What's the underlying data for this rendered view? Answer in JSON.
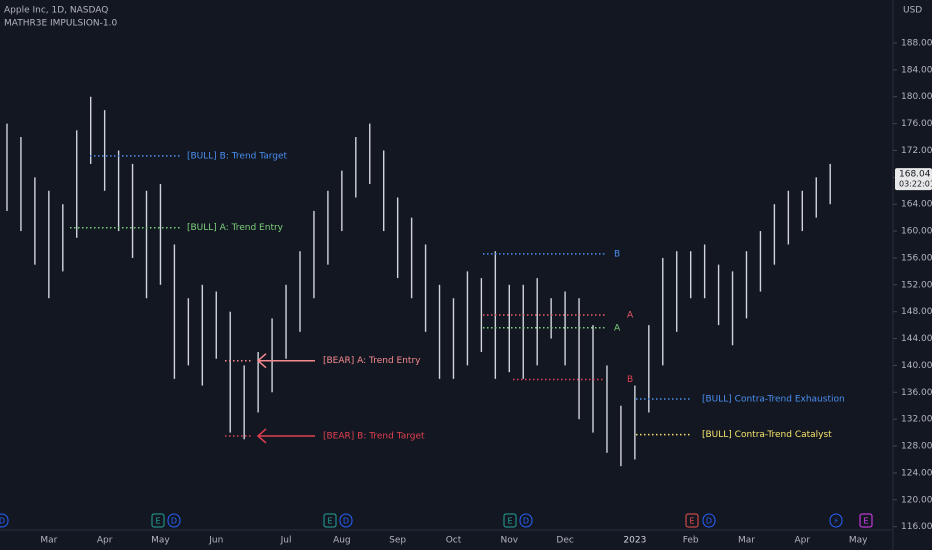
{
  "chart_data": {
    "type": "range",
    "title": "Apple Inc, 1D, NASDAQ",
    "subtitle": "MATHR3E IMPULSION-1.0",
    "currency": "USD",
    "last_price": 168.04,
    "countdown": "03:22:01",
    "bar_color": "#d1d4dc",
    "grid": false,
    "ylim": [
      115.5,
      194.4
    ],
    "yticks": [
      {
        "value": 116,
        "label": "116.00"
      },
      {
        "value": 120,
        "label": "120.00"
      },
      {
        "value": 124,
        "label": "124.00"
      },
      {
        "value": 128,
        "label": "128.00"
      },
      {
        "value": 132,
        "label": "132.00"
      },
      {
        "value": 136,
        "label": "136.00"
      },
      {
        "value": 140,
        "label": "140.00"
      },
      {
        "value": 144,
        "label": "144.00"
      },
      {
        "value": 148,
        "label": "148.00"
      },
      {
        "value": 152,
        "label": "152.00"
      },
      {
        "value": 156,
        "label": "156.00"
      },
      {
        "value": 160,
        "label": "160.00"
      },
      {
        "value": 164,
        "label": "164.00"
      },
      {
        "value": 168,
        "label": "168.00"
      },
      {
        "value": 172,
        "label": "172.00"
      },
      {
        "value": 176,
        "label": "176.00"
      },
      {
        "value": 180,
        "label": "180.00"
      },
      {
        "value": 184,
        "label": "184.00"
      },
      {
        "value": 188,
        "label": "188.00"
      }
    ],
    "categories": [
      null,
      null,
      null,
      "Mar",
      null,
      null,
      null,
      "Apr",
      null,
      null,
      null,
      "May",
      null,
      null,
      null,
      "Jun",
      null,
      null,
      null,
      null,
      "Jul",
      null,
      null,
      null,
      "Aug",
      null,
      null,
      null,
      "Sep",
      null,
      null,
      null,
      "Oct",
      null,
      null,
      null,
      "Nov",
      null,
      null,
      null,
      "Dec",
      null,
      null,
      null,
      null,
      "2023",
      null,
      null,
      null,
      "Feb",
      null,
      null,
      null,
      "Mar",
      null,
      null,
      null,
      "Apr",
      null,
      null,
      null,
      "May",
      null,
      null
    ],
    "low": [
      163,
      160,
      155,
      150,
      154,
      159,
      170,
      166,
      160,
      156,
      150,
      152,
      138,
      140,
      137,
      141,
      130,
      129,
      133,
      136,
      141,
      145,
      150,
      155,
      160,
      165,
      167,
      160,
      153,
      150,
      145,
      138,
      138,
      140,
      142,
      138,
      139,
      138,
      140,
      144,
      140,
      132,
      130,
      127,
      125,
      126,
      133,
      140,
      145,
      150,
      150,
      146,
      143,
      147,
      151,
      155,
      158,
      160,
      162,
      164,
      null,
      null,
      null,
      null
    ],
    "high": [
      176,
      174,
      168,
      166,
      164,
      175,
      180,
      178,
      172,
      170,
      166,
      167,
      158,
      150,
      152,
      151,
      148,
      140,
      142,
      147,
      152,
      157,
      163,
      166,
      169,
      174,
      176,
      172,
      165,
      162,
      158,
      152,
      150,
      154,
      153,
      157,
      152,
      152,
      153,
      150,
      151,
      150,
      146,
      140,
      134,
      137,
      146,
      156,
      157,
      157,
      158,
      155,
      154,
      157,
      160,
      164,
      166,
      166,
      168,
      170,
      null,
      null,
      null,
      null
    ],
    "levels": [
      {
        "label": "[BULL] B: Trend Target",
        "value": 171.2,
        "color": "#4a8ff0"
      },
      {
        "label": "[BULL] A: Trend Entry",
        "value": 160.5,
        "color": "#7ed17a"
      },
      {
        "label": "[BEAR] A: Trend Entry",
        "value": 140.7,
        "color": "#f58a8f"
      },
      {
        "label": "[BEAR] B: Trend Target",
        "value": 129.5,
        "color": "#e0404f"
      },
      {
        "label": "B",
        "value": 156.6,
        "color": "#4a8ff0"
      },
      {
        "label": "A",
        "value": 147.5,
        "color": "#f05a6a"
      },
      {
        "label": "A",
        "value": 145.6,
        "color": "#7ed17a"
      },
      {
        "label": "B",
        "value": 137.9,
        "color": "#e0404f"
      },
      {
        "label": "[BULL] Contra-Trend Exhaustion",
        "value": 135.0,
        "color": "#4a8ff0"
      },
      {
        "label": "[BULL] Contra-Trend Catalyst",
        "value": 129.7,
        "color": "#f5e56b"
      }
    ],
    "event_markers": [
      "D",
      "E",
      "D",
      "E",
      "D",
      "E",
      "D",
      "E",
      "D",
      "⚡",
      "E"
    ]
  }
}
